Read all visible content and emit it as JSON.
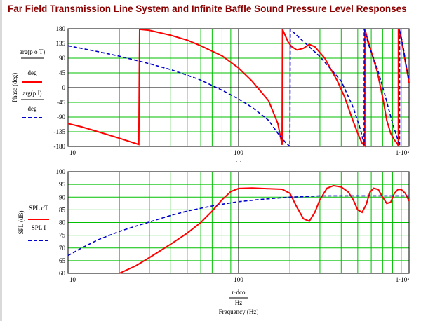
{
  "title": "Far Field Transmission Line System and Infinite Baffle Sound Pressure Level Responses",
  "colors": {
    "title": "#8b0000",
    "grid": "#00c000",
    "series_red": "#ff0000",
    "series_blue": "#0000cc"
  },
  "chart_data": [
    {
      "type": "line",
      "xscale": "log",
      "xlim": [
        10,
        1000
      ],
      "ylim": [
        -180,
        180
      ],
      "ylabel": "Phase (deg)",
      "xlabel": "r·dco / Hz",
      "xticks": [
        "10",
        "100",
        "1·10³"
      ],
      "yticks": [
        "180",
        "135",
        "90",
        "45",
        "0",
        "-45",
        "-90",
        "-135",
        "-180"
      ],
      "legend": {
        "red": {
          "top": "arg(p o T)",
          "bottom": "deg"
        },
        "blue": {
          "top": "arg(p I)",
          "bottom": "deg"
        }
      },
      "series": [
        {
          "color": "red",
          "points": [
            [
              10,
              -110
            ],
            [
              12,
              -120
            ],
            [
              15,
              -135
            ],
            [
              20,
              -155
            ],
            [
              26,
              -174
            ],
            [
              26.3,
              178
            ],
            [
              30,
              175
            ],
            [
              40,
              160
            ],
            [
              50,
              145
            ],
            [
              60,
              128
            ],
            [
              80,
              97
            ],
            [
              100,
              60
            ],
            [
              120,
              20
            ],
            [
              150,
              -40
            ],
            [
              170,
              -110
            ],
            [
              180,
              -175
            ],
            [
              181,
              178
            ],
            [
              195,
              140
            ],
            [
              205,
              125
            ],
            [
              220,
              115
            ],
            [
              240,
              120
            ],
            [
              260,
              132
            ],
            [
              280,
              125
            ],
            [
              320,
              90
            ],
            [
              380,
              20
            ],
            [
              420,
              -30
            ],
            [
              460,
              -90
            ],
            [
              500,
              -140
            ],
            [
              530,
              -170
            ],
            [
              550,
              -178
            ],
            [
              551,
              178
            ],
            [
              570,
              150
            ],
            [
              600,
              110
            ],
            [
              650,
              50
            ],
            [
              700,
              -30
            ],
            [
              740,
              -100
            ],
            [
              780,
              -140
            ],
            [
              820,
              -160
            ],
            [
              850,
              -170
            ],
            [
              865,
              -178
            ],
            [
              866,
              178
            ],
            [
              900,
              150
            ],
            [
              950,
              80
            ],
            [
              1000,
              15
            ]
          ]
        },
        {
          "color": "blue",
          "points": [
            [
              10,
              128
            ],
            [
              15,
              110
            ],
            [
              20,
              96
            ],
            [
              30,
              73
            ],
            [
              40,
              55
            ],
            [
              50,
              38
            ],
            [
              60,
              23
            ],
            [
              80,
              -8
            ],
            [
              100,
              -35
            ],
            [
              120,
              -60
            ],
            [
              150,
              -100
            ],
            [
              170,
              -140
            ],
            [
              190,
              -170
            ],
            [
              200,
              -180
            ],
            [
              201,
              178
            ],
            [
              230,
              150
            ],
            [
              300,
              95
            ],
            [
              400,
              20
            ],
            [
              470,
              -60
            ],
            [
              520,
              -130
            ],
            [
              545,
              -175
            ],
            [
              546,
              178
            ],
            [
              580,
              130
            ],
            [
              650,
              60
            ],
            [
              720,
              -20
            ],
            [
              800,
              -110
            ],
            [
              860,
              -160
            ],
            [
              880,
              -178
            ],
            [
              881,
              178
            ],
            [
              920,
              130
            ],
            [
              960,
              70
            ],
            [
              1000,
              25
            ]
          ]
        }
      ]
    },
    {
      "type": "line",
      "xscale": "log",
      "xlim": [
        10,
        1000
      ],
      "ylim": [
        60,
        100
      ],
      "ylabel": "SPL (dB)",
      "xlabel": "r·dco / Hz",
      "xaxis_title": "Frequency (Hz)",
      "xticks": [
        "10",
        "100",
        "1·10³"
      ],
      "yticks": [
        "100",
        "95",
        "90",
        "85",
        "80",
        "75",
        "70",
        "65",
        "60"
      ],
      "legend": {
        "red": {
          "top": "SPL oT"
        },
        "blue": {
          "top": "SPL I"
        }
      },
      "series": [
        {
          "color": "red",
          "points": [
            [
              20,
              60
            ],
            [
              25,
              63
            ],
            [
              30,
              66.2
            ],
            [
              40,
              71.5
            ],
            [
              50,
              75.8
            ],
            [
              60,
              80
            ],
            [
              70,
              84.5
            ],
            [
              80,
              89
            ],
            [
              90,
              92.2
            ],
            [
              100,
              93.4
            ],
            [
              120,
              93.6
            ],
            [
              150,
              93.3
            ],
            [
              180,
              93.1
            ],
            [
              200,
              91.5
            ],
            [
              220,
              86
            ],
            [
              240,
              81.5
            ],
            [
              260,
              80.5
            ],
            [
              280,
              84
            ],
            [
              300,
              89
            ],
            [
              330,
              93.5
            ],
            [
              360,
              94.5
            ],
            [
              400,
              94
            ],
            [
              440,
              92
            ],
            [
              470,
              89
            ],
            [
              500,
              85
            ],
            [
              530,
              84
            ],
            [
              560,
              87
            ],
            [
              590,
              92
            ],
            [
              620,
              93.5
            ],
            [
              660,
              93
            ],
            [
              700,
              90
            ],
            [
              740,
              87.5
            ],
            [
              780,
              88
            ],
            [
              820,
              91.5
            ],
            [
              860,
              93
            ],
            [
              900,
              93
            ],
            [
              950,
              91.5
            ],
            [
              1000,
              88.5
            ]
          ]
        },
        {
          "color": "blue",
          "points": [
            [
              10,
              67
            ],
            [
              12,
              70
            ],
            [
              15,
              73.2
            ],
            [
              20,
              76.5
            ],
            [
              25,
              78.6
            ],
            [
              30,
              80.2
            ],
            [
              40,
              82.8
            ],
            [
              50,
              84.5
            ],
            [
              60,
              85.6
            ],
            [
              70,
              86.5
            ],
            [
              80,
              87.2
            ],
            [
              100,
              88.2
            ],
            [
              130,
              89
            ],
            [
              160,
              89.5
            ],
            [
              200,
              90
            ],
            [
              250,
              90.2
            ],
            [
              300,
              90.5
            ],
            [
              400,
              90.5
            ],
            [
              500,
              90.5
            ],
            [
              600,
              90.5
            ],
            [
              700,
              90.5
            ],
            [
              800,
              90.5
            ],
            [
              900,
              90.5
            ],
            [
              1000,
              90.5
            ]
          ]
        }
      ]
    }
  ]
}
